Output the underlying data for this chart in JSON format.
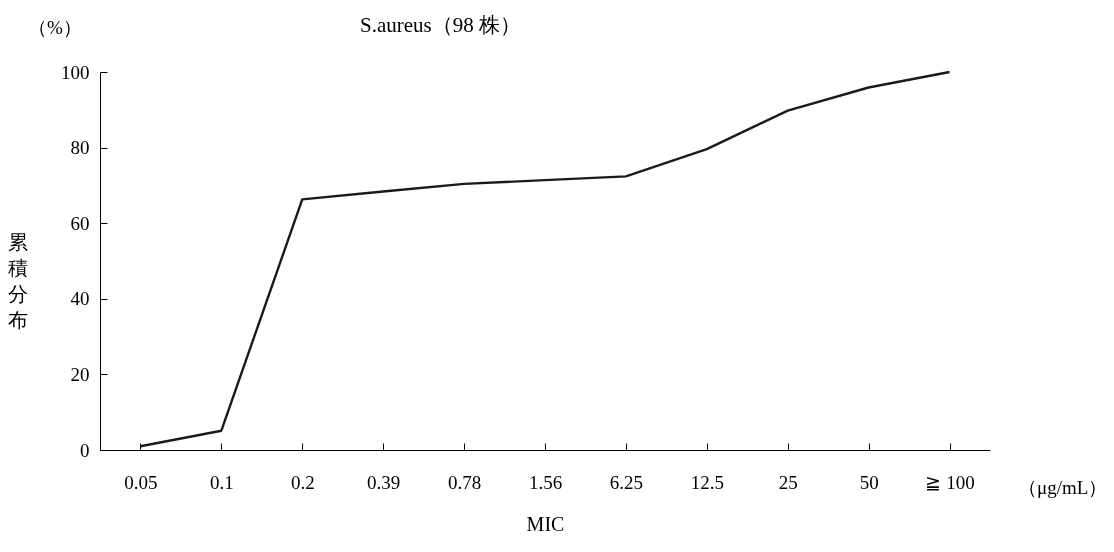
{
  "chart_data": {
    "type": "line",
    "title": "S.aureus（98 株）",
    "xlabel": "MIC",
    "ylabel": "累積分布",
    "annotations": [
      "（%）",
      "（μg/mL）"
    ],
    "categories": [
      "0.05",
      "0.1",
      "0.2",
      "0.39",
      "0.78",
      "1.56",
      "6.25",
      "12.5",
      "25",
      "50",
      "≧ 100"
    ],
    "series": [
      {
        "color": "#1a1a1a",
        "values": [
          1.0,
          5.1,
          66.3,
          68.4,
          70.4,
          71.4,
          72.4,
          79.6,
          89.8,
          95.9,
          100
        ]
      }
    ],
    "ylim": [
      0,
      100
    ],
    "yticks": [
      0,
      20,
      40,
      60,
      80,
      100
    ],
    "grid": false
  }
}
